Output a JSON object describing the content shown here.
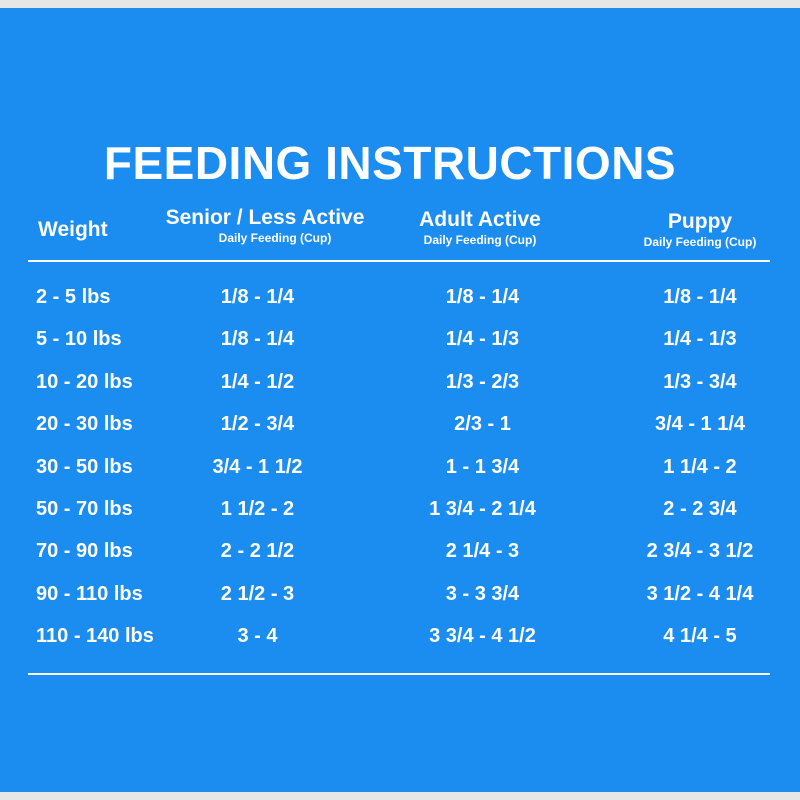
{
  "title": "FEEDING INSTRUCTIONS",
  "colors": {
    "background": "#1b8cf0",
    "text": "#ffffff"
  },
  "columns": {
    "weight": {
      "label": "Weight"
    },
    "senior": {
      "label": "Senior / Less Active",
      "sub": "Daily Feeding (Cup)"
    },
    "adult": {
      "label": "Adult Active",
      "sub": "Daily Feeding (Cup)"
    },
    "puppy": {
      "label": "Puppy",
      "sub": "Daily Feeding (Cup)"
    }
  },
  "rows": [
    {
      "weight": "2 - 5 lbs",
      "senior": "1/8 - 1/4",
      "adult": "1/8 - 1/4",
      "puppy": "1/8 - 1/4"
    },
    {
      "weight": "5 - 10 lbs",
      "senior": "1/8 - 1/4",
      "adult": "1/4 - 1/3",
      "puppy": "1/4 - 1/3"
    },
    {
      "weight": "10 - 20 lbs",
      "senior": "1/4 - 1/2",
      "adult": "1/3 - 2/3",
      "puppy": "1/3 - 3/4"
    },
    {
      "weight": "20 - 30 lbs",
      "senior": "1/2 - 3/4",
      "adult": "2/3 - 1",
      "puppy": "3/4 - 1 1/4"
    },
    {
      "weight": "30 - 50 lbs",
      "senior": "3/4 - 1 1/2",
      "adult": "1 - 1 3/4",
      "puppy": "1 1/4 - 2"
    },
    {
      "weight": "50 - 70 lbs",
      "senior": "1 1/2 - 2",
      "adult": "1 3/4 - 2 1/4",
      "puppy": "2 - 2 3/4"
    },
    {
      "weight": "70 - 90 lbs",
      "senior": "2 - 2 1/2",
      "adult": "2 1/4 - 3",
      "puppy": "2 3/4 - 3 1/2"
    },
    {
      "weight": "90 - 110 lbs",
      "senior": "2 1/2 - 3",
      "adult": "3 - 3 3/4",
      "puppy": "3 1/2 - 4 1/4"
    },
    {
      "weight": "110 - 140 lbs",
      "senior": "3 - 4",
      "adult": "3 3/4 - 4 1/2",
      "puppy": "4 1/4 - 5"
    }
  ]
}
